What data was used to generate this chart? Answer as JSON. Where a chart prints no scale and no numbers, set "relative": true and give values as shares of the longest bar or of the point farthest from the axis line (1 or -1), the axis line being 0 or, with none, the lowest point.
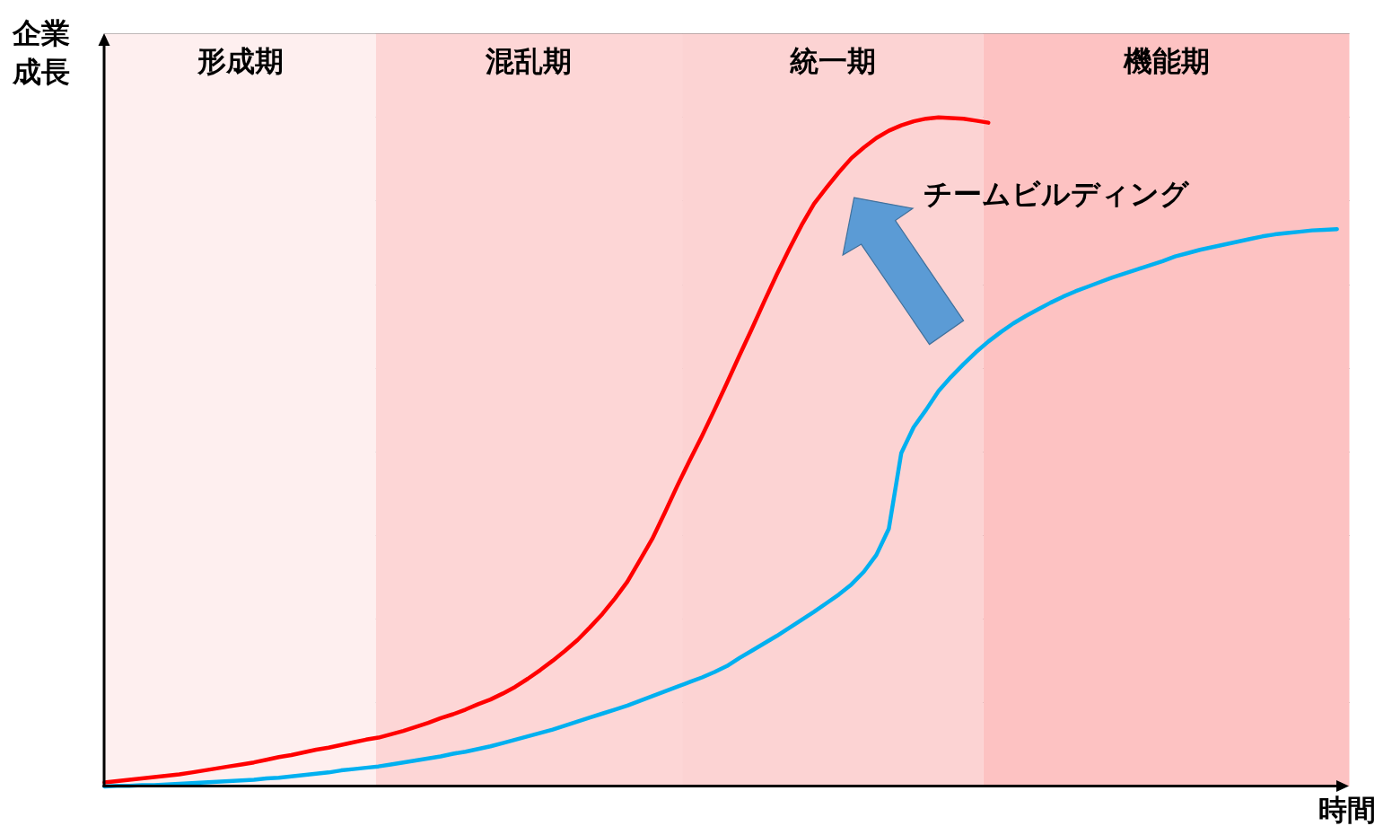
{
  "chart_data": {
    "type": "line",
    "relative": true,
    "tick_labels": false,
    "grid": "y",
    "xlabel": "時間",
    "ylabel": "企業成長",
    "categories": [
      null,
      null,
      null,
      null,
      null,
      null,
      null,
      null,
      null,
      null,
      null,
      null,
      null,
      null,
      null,
      null,
      null,
      null,
      null,
      null,
      null,
      null,
      null,
      null,
      null,
      null,
      null,
      null,
      null,
      null,
      null,
      null,
      null,
      null,
      null,
      null,
      null,
      null,
      null,
      null,
      null,
      null,
      null,
      null,
      null,
      null,
      null,
      null,
      null,
      null,
      null,
      null,
      null,
      null,
      null,
      null,
      null,
      null,
      null,
      null,
      null,
      null,
      null,
      null,
      null,
      null,
      null,
      null,
      null,
      null,
      null,
      null,
      null,
      null,
      null,
      null,
      null,
      null,
      null,
      null,
      null,
      null,
      null,
      null,
      null,
      null,
      null,
      null,
      null,
      null,
      null,
      null,
      null,
      null,
      null,
      null,
      null,
      null,
      null,
      null,
      null
    ],
    "series": [
      {
        "color": "#ff0000",
        "values": [
          0.006,
          0.008,
          0.01,
          0.012,
          0.014,
          0.016,
          0.018,
          0.021,
          0.024,
          0.027,
          0.03,
          0.033,
          0.036,
          0.04,
          0.044,
          0.047,
          0.051,
          0.055,
          0.058,
          0.062,
          0.066,
          0.07,
          0.073,
          0.078,
          0.083,
          0.089,
          0.095,
          0.102,
          0.108,
          0.115,
          0.123,
          0.13,
          0.139,
          0.149,
          0.161,
          0.174,
          0.188,
          0.203,
          0.219,
          0.238,
          0.258,
          0.281,
          0.306,
          0.338,
          0.37,
          0.409,
          0.449,
          0.487,
          0.524,
          0.563,
          0.603,
          0.644,
          0.684,
          0.725,
          0.765,
          0.803,
          0.839,
          0.871,
          0.895,
          0.918,
          0.939,
          0.955,
          0.969,
          0.98,
          0.988,
          0.994,
          0.998,
          1.0,
          0.999,
          0.998,
          0.995,
          0.992,
          null,
          null,
          null,
          null,
          null,
          null,
          null,
          null,
          null,
          null,
          null,
          null,
          null,
          null,
          null,
          null,
          null,
          null,
          null,
          null,
          null,
          null,
          null,
          null,
          null,
          null,
          null,
          null,
          null
        ]
      },
      {
        "color": "#00b0f0",
        "values": [
          0.0,
          0.001,
          0.001,
          0.002,
          0.002,
          0.003,
          0.004,
          0.005,
          0.006,
          0.007,
          0.008,
          0.009,
          0.01,
          0.012,
          0.013,
          0.015,
          0.017,
          0.019,
          0.021,
          0.024,
          0.026,
          0.028,
          0.03,
          0.033,
          0.036,
          0.039,
          0.042,
          0.045,
          0.049,
          0.052,
          0.056,
          0.06,
          0.065,
          0.07,
          0.075,
          0.08,
          0.085,
          0.091,
          0.097,
          0.103,
          0.109,
          0.115,
          0.121,
          0.128,
          0.135,
          0.142,
          0.149,
          0.156,
          0.163,
          0.171,
          0.18,
          0.192,
          0.203,
          0.214,
          0.225,
          0.237,
          0.249,
          0.261,
          0.274,
          0.287,
          0.302,
          0.321,
          0.346,
          0.385,
          0.498,
          0.537,
          0.563,
          0.591,
          0.612,
          0.631,
          0.649,
          0.665,
          0.679,
          0.692,
          0.703,
          0.713,
          0.723,
          0.732,
          0.74,
          0.747,
          0.754,
          0.761,
          0.767,
          0.773,
          0.779,
          0.785,
          0.792,
          0.797,
          0.802,
          0.806,
          0.81,
          0.814,
          0.818,
          0.822,
          0.825,
          0.827,
          0.829,
          0.831,
          0.832,
          0.833,
          null
        ]
      }
    ],
    "annotations": [
      "形成期",
      "混乱期",
      "統一期",
      "機能期",
      "チームビルディング"
    ]
  }
}
